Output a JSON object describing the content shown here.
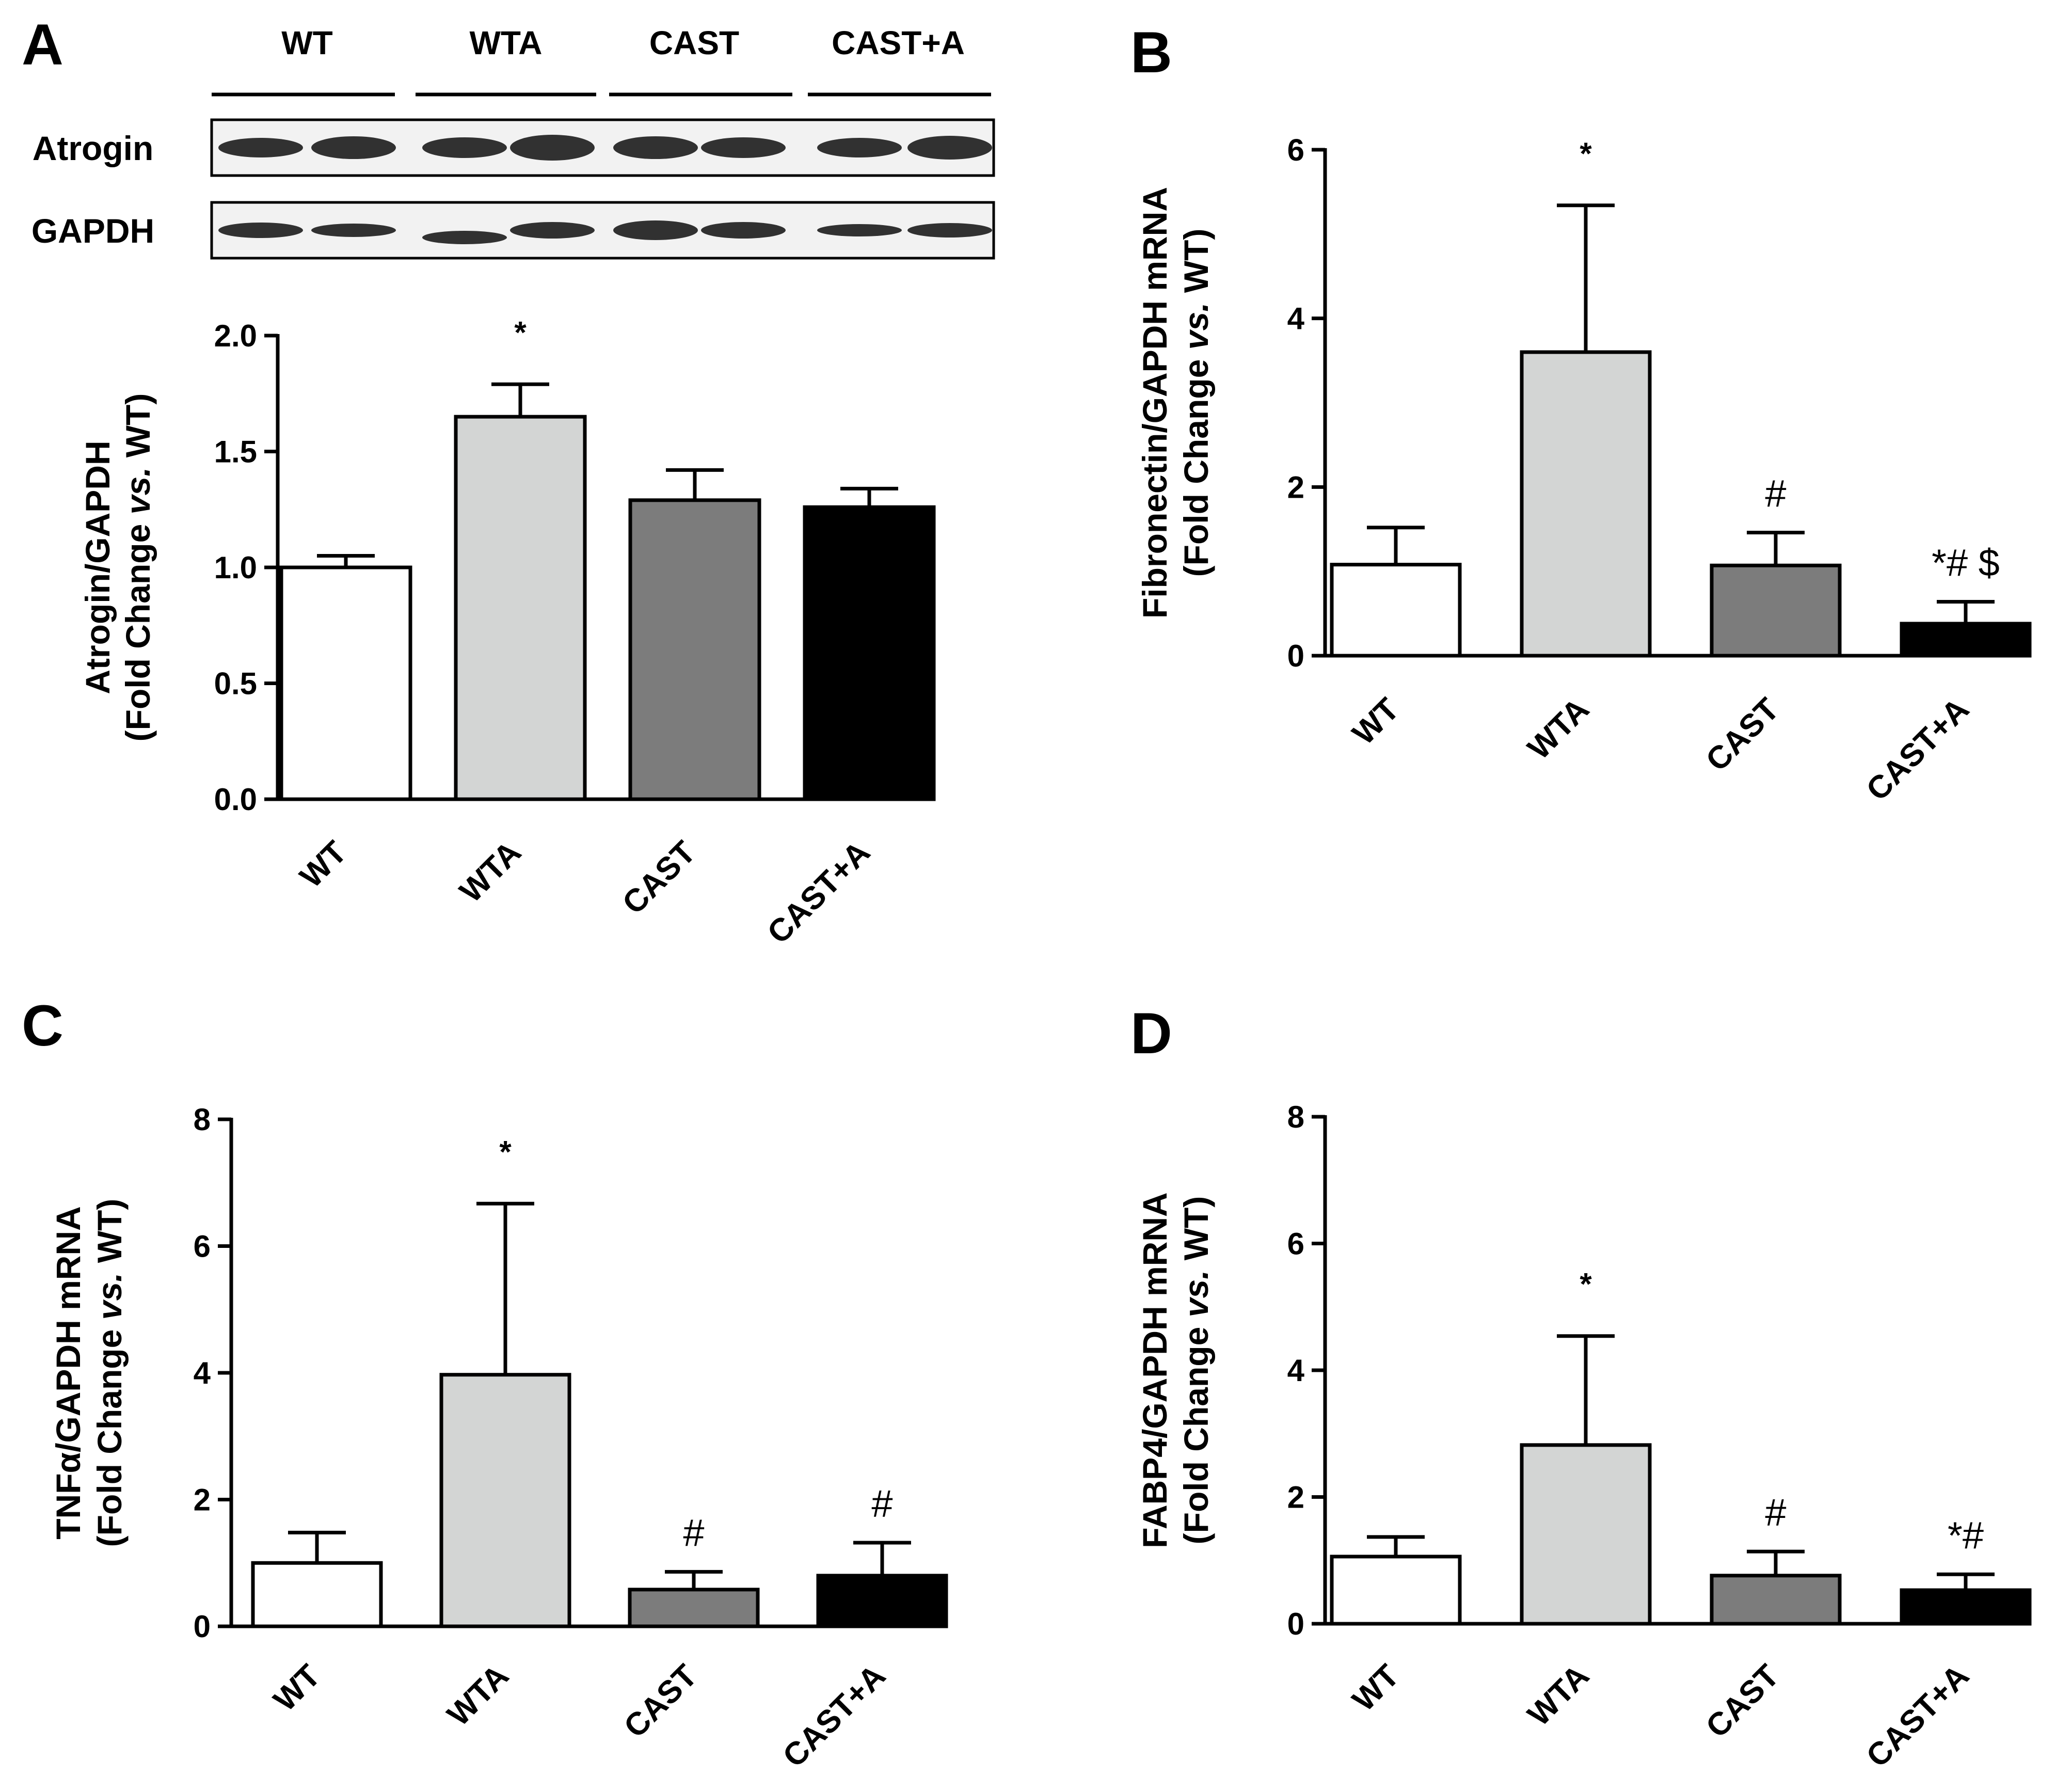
{
  "figure": {
    "panel_labels": [
      "A",
      "B",
      "C",
      "D"
    ]
  },
  "western_blot": {
    "groups": [
      "WT",
      "WTA",
      "CAST",
      "CAST+A"
    ],
    "rows": [
      "Atrogin",
      "GAPDH"
    ]
  },
  "chart_data": [
    {
      "panel": "A",
      "type": "bar",
      "title": "",
      "categories": [
        "WT",
        "WTA",
        "CAST",
        "CAST+A"
      ],
      "values": [
        1.0,
        1.65,
        1.29,
        1.26
      ],
      "errors": [
        0.05,
        0.14,
        0.13,
        0.08
      ],
      "bar_colors": [
        "#ffffff",
        "#d3d5d4",
        "#7c7c7c",
        "#000000"
      ],
      "annotations": [
        "",
        "*",
        "",
        ""
      ],
      "ylabel_line1": "Atrogin/GAPDH",
      "ylabel_line2_parts": [
        "(Fold Change ",
        "vs.",
        " WT)"
      ],
      "ylim": [
        0,
        2.0
      ],
      "yticks": [
        "0.0",
        "0.5",
        "1.0",
        "1.5",
        "2.0"
      ],
      "xlabel": ""
    },
    {
      "panel": "B",
      "type": "bar",
      "title": "",
      "categories": [
        "WT",
        "WTA",
        "CAST",
        "CAST+A"
      ],
      "values": [
        1.08,
        3.6,
        1.07,
        0.38
      ],
      "errors": [
        0.44,
        1.74,
        0.39,
        0.26
      ],
      "bar_colors": [
        "#ffffff",
        "#d3d5d4",
        "#7c7c7c",
        "#000000"
      ],
      "annotations": [
        "",
        "*",
        "#",
        "*# $"
      ],
      "ylabel_line1": "Fibronectin/GAPDH mRNA",
      "ylabel_line2_parts": [
        "(Fold Change ",
        "vs.",
        " WT)"
      ],
      "ylim": [
        0,
        6
      ],
      "yticks": [
        "0",
        "2",
        "4",
        "6"
      ],
      "xlabel": ""
    },
    {
      "panel": "C",
      "type": "bar",
      "title": "",
      "categories": [
        "WT",
        "WTA",
        "CAST",
        "CAST+A"
      ],
      "values": [
        1.0,
        3.97,
        0.58,
        0.8
      ],
      "errors": [
        0.48,
        2.7,
        0.28,
        0.52
      ],
      "bar_colors": [
        "#ffffff",
        "#d3d5d4",
        "#7c7c7c",
        "#000000"
      ],
      "annotations": [
        "",
        "*",
        "#",
        "#"
      ],
      "ylabel_line1": "TNFα/GAPDH mRNA",
      "ylabel_line2_parts": [
        "(Fold Change ",
        "vs.",
        " WT)"
      ],
      "ylim": [
        0,
        8
      ],
      "yticks": [
        "0",
        "2",
        "4",
        "6",
        "8"
      ],
      "xlabel": ""
    },
    {
      "panel": "D",
      "type": "bar",
      "title": "",
      "categories": [
        "WT",
        "WTA",
        "CAST",
        "CAST+A"
      ],
      "values": [
        1.06,
        2.82,
        0.76,
        0.53
      ],
      "errors": [
        0.31,
        1.72,
        0.38,
        0.25
      ],
      "bar_colors": [
        "#ffffff",
        "#d3d5d4",
        "#7c7c7c",
        "#000000"
      ],
      "annotations": [
        "",
        "*",
        "#",
        "*#"
      ],
      "ylabel_line1": "FABP4/GAPDH mRNA",
      "ylabel_line2_parts": [
        "(Fold Change ",
        "vs.",
        " WT)"
      ],
      "ylim": [
        0,
        8
      ],
      "yticks": [
        "0",
        "2",
        "4",
        "6",
        "8"
      ],
      "xlabel": ""
    }
  ]
}
